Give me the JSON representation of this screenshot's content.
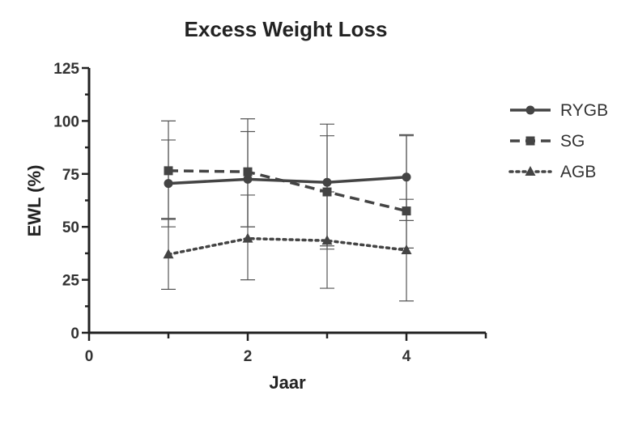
{
  "chart_data": {
    "type": "line",
    "title": "Excess Weight Loss",
    "xlabel": "Jaar",
    "ylabel": "EWL (%)",
    "xlim": [
      0,
      5
    ],
    "ylim": [
      0,
      125
    ],
    "x_ticks": [
      0,
      2,
      4
    ],
    "y_ticks": [
      0,
      25,
      50,
      75,
      100,
      125
    ],
    "x": [
      1,
      2,
      3,
      4
    ],
    "grid": false,
    "legend_position": "top-right",
    "series": [
      {
        "name": "RYGB",
        "line_style": "solid",
        "marker": "circle",
        "color": "#444444",
        "values": [
          70.5,
          72.5,
          71,
          73.5
        ],
        "error_low": [
          53.5,
          50,
          41,
          53
        ],
        "error_high": [
          91,
          95,
          93,
          93
        ]
      },
      {
        "name": "SG",
        "line_style": "dashed",
        "marker": "square",
        "color": "#444444",
        "values": [
          76.5,
          76,
          66.5,
          57.5
        ],
        "error_low": [
          50,
          50,
          39.5,
          40
        ],
        "error_high": [
          100,
          101,
          98.5,
          93.5
        ]
      },
      {
        "name": "AGB",
        "line_style": "dotted",
        "marker": "triangle",
        "color": "#444444",
        "values": [
          37,
          44.5,
          43.5,
          39
        ],
        "error_low": [
          20.5,
          25,
          21,
          15
        ],
        "error_high": [
          54,
          65,
          66.5,
          63
        ]
      }
    ]
  }
}
